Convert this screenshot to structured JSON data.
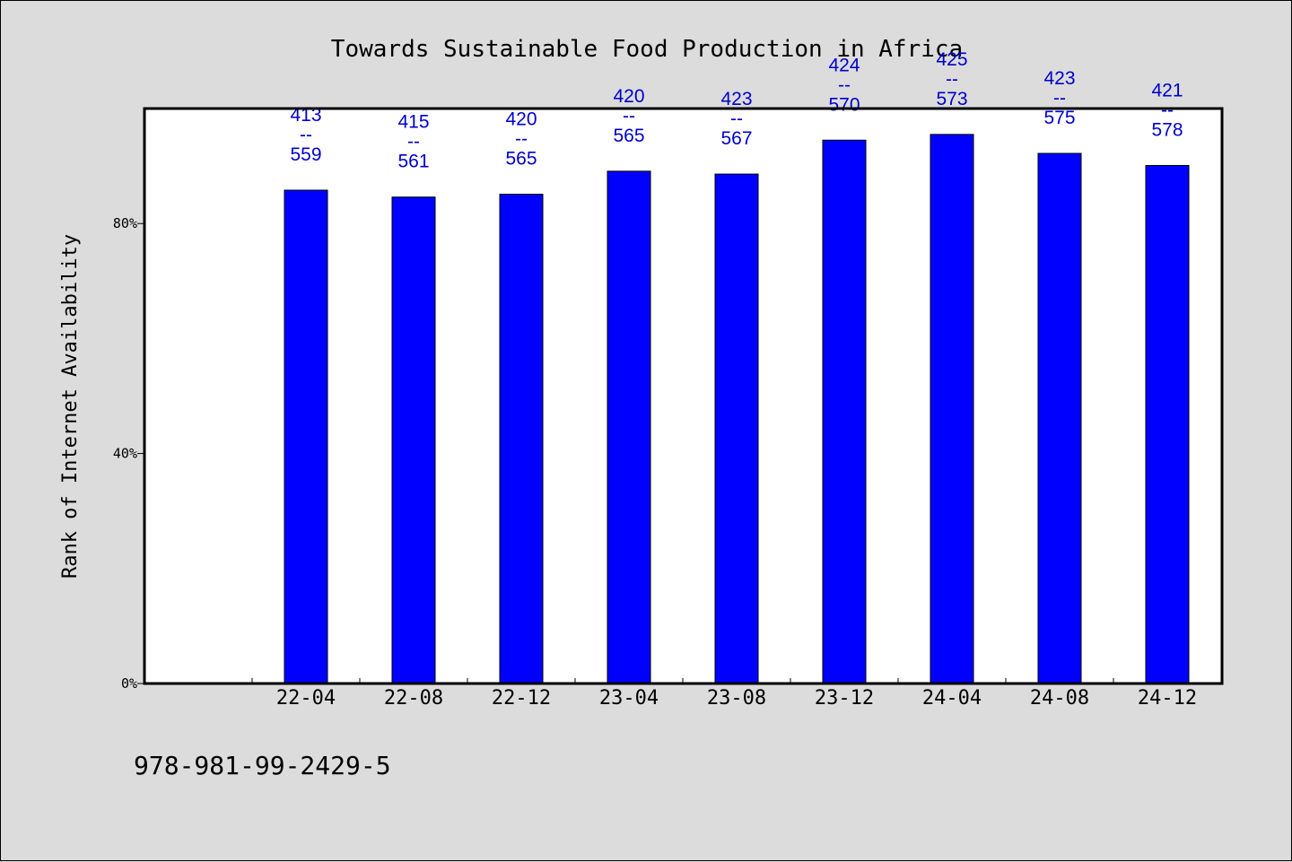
{
  "chart_data": {
    "type": "bar",
    "title": "Towards Sustainable Food Production in Africa",
    "ylabel": "Rank of Internet Availability",
    "xlabel": "",
    "categories": [
      "22-04",
      "22-08",
      "22-12",
      "23-04",
      "23-08",
      "23-12",
      "24-04",
      "24-08",
      "24-12"
    ],
    "values": [
      85.8,
      84.6,
      85.1,
      89.1,
      88.6,
      94.5,
      95.5,
      92.2,
      90.1
    ],
    "bar_labels": [
      {
        "top": "413",
        "sep": "--",
        "bottom": "559"
      },
      {
        "top": "415",
        "sep": "--",
        "bottom": "561"
      },
      {
        "top": "420",
        "sep": "--",
        "bottom": "565"
      },
      {
        "top": "420",
        "sep": "--",
        "bottom": "565"
      },
      {
        "top": "423",
        "sep": "--",
        "bottom": "567"
      },
      {
        "top": "424",
        "sep": "--",
        "bottom": "570"
      },
      {
        "top": "425",
        "sep": "--",
        "bottom": "573"
      },
      {
        "top": "423",
        "sep": "--",
        "bottom": "575"
      },
      {
        "top": "421",
        "sep": "--",
        "bottom": "578"
      }
    ],
    "yticks": [
      {
        "value": 0,
        "label": "0%"
      },
      {
        "value": 40,
        "label": "40%"
      },
      {
        "value": 80,
        "label": "80%"
      }
    ],
    "ylim": [
      0,
      100
    ],
    "grid": false,
    "bar_color": "#0000ff",
    "label_color": "#0000cc",
    "plot_background": "#ffffff",
    "figure_background": "#dcdcdc"
  },
  "footer_text": "978-981-99-2429-5"
}
